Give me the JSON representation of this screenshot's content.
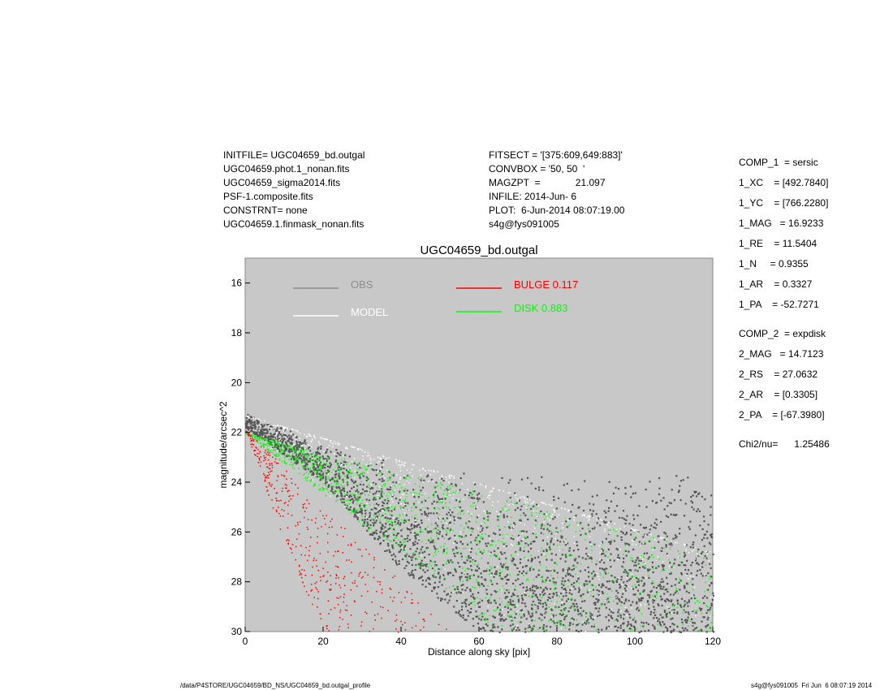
{
  "header_left": [
    "INITFILE= UGC04659_bd.outgal",
    "UGC04659.phot.1_nonan.fits",
    "UGC04659_sigma2014.fits",
    "PSF-1.composite.fits",
    "CONSTRNT= none",
    "UGC04659.1.finmask_nonan.fits"
  ],
  "header_mid": [
    "FITSECT = '[375:609,649:883]'",
    "CONVBOX = '50, 50  '",
    "MAGZPT  =             21.097",
    "INFILE: 2014-Jun- 6",
    "PLOT:  6-Jun-2014 08:07:19.00",
    "s4g@fys091005"
  ],
  "params": [
    "COMP_1  = sersic",
    "1_XC    = [492.7840]",
    "1_YC    = [766.2280]",
    "1_MAG   = 16.9233",
    "1_RE    = 11.5404",
    "1_N     = 0.9355",
    "1_AR    = 0.3327",
    "1_PA    = -52.7271",
    "COMP_2  = expdisk",
    "2_MAG   = 14.7123",
    "2_RS    = 27.0632",
    "2_AR    = [0.3305]",
    "2_PA    = [-67.3980]",
    "Chi2/nu=      1.25486"
  ],
  "footer": {
    "path": "/data/P4STORE/UGC04659/BD_NS/UGC04659_bd.outgal_profile",
    "stamp": "s4g@fys091005  Fri Jun  6 08:07:19 2014"
  },
  "chart_data": {
    "type": "scatter",
    "title": "UGC04659_bd.outgal",
    "xlabel": "Distance along sky [pix]",
    "ylabel": "magnitude/arcsec^2",
    "xlim": [
      0,
      120
    ],
    "ylim": [
      15,
      30
    ],
    "y_inverted": true,
    "xticks": [
      0,
      20,
      40,
      60,
      80,
      100,
      120
    ],
    "yticks": [
      16,
      18,
      20,
      22,
      24,
      26,
      28,
      30
    ],
    "background": "#c8c8c8",
    "legend_placement": "top",
    "series": [
      {
        "name": "OBS",
        "color": "#555555",
        "legend_color": "#8c8c8c",
        "upper_edge": {
          "x": [
            0,
            10,
            20,
            30,
            40,
            60,
            80,
            100,
            120
          ],
          "y": [
            21.2,
            21.8,
            22.4,
            22.9,
            23.2,
            23.6,
            23.8,
            23.8,
            23.6
          ]
        },
        "lower_edge": {
          "x": [
            0,
            20,
            40,
            60,
            80,
            100,
            120
          ],
          "y": [
            21.8,
            24.0,
            27.5,
            30,
            30,
            30,
            30
          ]
        }
      },
      {
        "name": "MODEL",
        "color": "#ffffff",
        "upper_edge": {
          "x": [
            0,
            120
          ],
          "y": [
            21.3,
            26.8
          ]
        },
        "lower_edge": {
          "x": [
            0,
            65
          ],
          "y": [
            21.9,
            30
          ]
        }
      },
      {
        "name": "BULGE  0.117",
        "color": "#ff0000",
        "upper_edge": {
          "x": [
            0,
            5,
            20,
            40,
            53
          ],
          "y": [
            21.9,
            22.6,
            25.0,
            28.0,
            30
          ]
        },
        "lower_edge": {
          "x": [
            0,
            3,
            10,
            20
          ],
          "y": [
            21.9,
            23.2,
            26.4,
            30
          ]
        }
      },
      {
        "name": "DISK  0.883",
        "color": "#00ff00",
        "upper_edge": {
          "x": [
            0,
            120
          ],
          "y": [
            22.0,
            26.8
          ]
        },
        "lower_edge": {
          "x": [
            0,
            65
          ],
          "y": [
            22.0,
            30
          ]
        }
      }
    ]
  }
}
